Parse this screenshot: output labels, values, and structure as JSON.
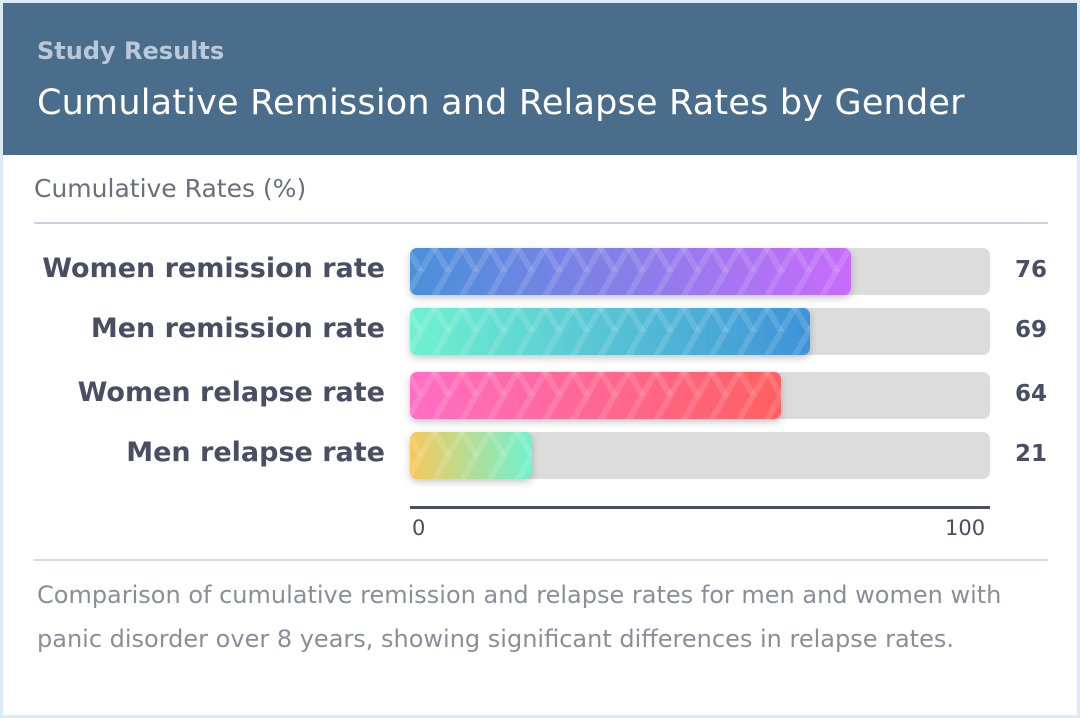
{
  "header": {
    "eyebrow": "Study Results",
    "title": "Cumulative Remission and Relapse Rates by Gender"
  },
  "subheading": "Cumulative Rates (%)",
  "caption": "Comparison of cumulative remission and relapse rates for men and women with panic disorder over 8 years, showing significant differences in relapse rates.",
  "chart_data": {
    "type": "bar",
    "orientation": "horizontal",
    "title": "Cumulative Remission and Relapse Rates by Gender",
    "ylabel": "Cumulative Rates (%)",
    "xlim": [
      0,
      100
    ],
    "x_ticks": [
      "0",
      "100"
    ],
    "categories": [
      "Women remission rate",
      "Men remission rate",
      "Women relapse rate",
      "Men relapse rate"
    ],
    "values": [
      76,
      69,
      64,
      21
    ],
    "value_labels": [
      "76",
      "69",
      "64",
      "21"
    ],
    "grid": false,
    "legend": "none",
    "colors": [
      [
        "#4a90d9",
        "#c86bfa"
      ],
      [
        "#6ff2d0",
        "#3e92d9"
      ],
      [
        "#ff6ec4",
        "#ff6060"
      ],
      [
        "#f7c95a",
        "#6ff2d0"
      ]
    ],
    "track_color": "#dcdcdc"
  }
}
